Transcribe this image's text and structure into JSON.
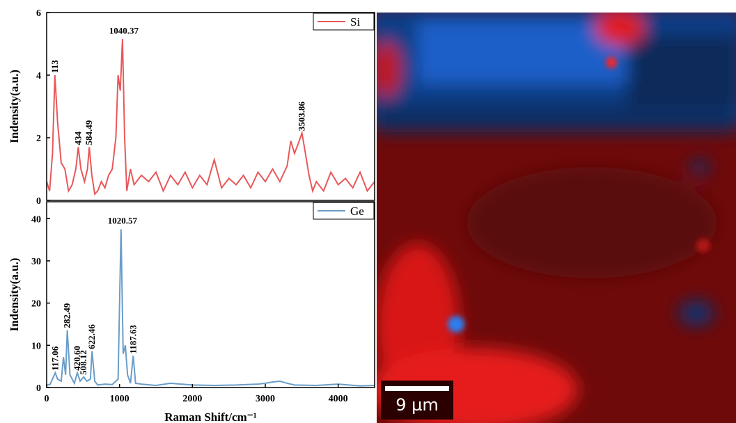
{
  "chart_data": [
    {
      "type": "line",
      "ylabel": "Indensity(a.u.)",
      "xlim": [
        0,
        4500
      ],
      "ylim": [
        0,
        6
      ],
      "yticks": [
        0,
        2,
        4,
        6
      ],
      "legend": "upper right",
      "series": [
        {
          "name": "Si",
          "color": "#e8585a",
          "x": [
            0,
            40,
            80,
            113,
            150,
            200,
            250,
            300,
            350,
            400,
            434,
            470,
            520,
            560,
            584.49,
            620,
            660,
            700,
            750,
            800,
            850,
            900,
            950,
            980,
            1010,
            1040.37,
            1070,
            1100,
            1150,
            1200,
            1300,
            1400,
            1500,
            1600,
            1700,
            1800,
            1900,
            2000,
            2100,
            2200,
            2300,
            2400,
            2500,
            2600,
            2700,
            2800,
            2900,
            3000,
            3100,
            3200,
            3300,
            3350,
            3400,
            3450,
            3503.86,
            3550,
            3600,
            3650,
            3700,
            3800,
            3900,
            4000,
            4100,
            4200,
            4300,
            4400,
            4500
          ],
          "values": [
            0.6,
            0.3,
            1.5,
            4.0,
            2.5,
            1.2,
            1.0,
            0.3,
            0.5,
            1.0,
            1.7,
            1.0,
            0.6,
            1.0,
            1.7,
            0.8,
            0.2,
            0.3,
            0.6,
            0.4,
            0.8,
            1.0,
            2.0,
            4.0,
            3.5,
            5.15,
            2.0,
            0.3,
            1.0,
            0.5,
            0.8,
            0.6,
            0.9,
            0.3,
            0.8,
            0.5,
            0.9,
            0.4,
            0.8,
            0.5,
            1.3,
            0.4,
            0.7,
            0.5,
            0.8,
            0.4,
            0.9,
            0.6,
            1.0,
            0.6,
            1.1,
            1.9,
            1.5,
            1.8,
            2.15,
            1.5,
            0.8,
            0.3,
            0.6,
            0.3,
            0.9,
            0.5,
            0.7,
            0.4,
            0.9,
            0.3,
            0.6
          ]
        }
      ],
      "annotations": [
        {
          "x": 113,
          "y": 4.0,
          "text": "113"
        },
        {
          "x": 434,
          "y": 1.7,
          "text": "434"
        },
        {
          "x": 584.49,
          "y": 1.7,
          "text": "584.49"
        },
        {
          "x": 1040.37,
          "y": 5.15,
          "text": "1040.37"
        },
        {
          "x": 3503.86,
          "y": 2.15,
          "text": "3503.86"
        }
      ]
    },
    {
      "type": "line",
      "ylabel": "Indensity(a.u.)",
      "xlabel": "Raman Shift/cm⁻¹",
      "xlim": [
        0,
        4500
      ],
      "ylim": [
        0,
        44
      ],
      "xticks": [
        0,
        1000,
        2000,
        3000,
        4000
      ],
      "yticks": [
        0,
        10,
        20,
        30,
        40
      ],
      "legend": "upper right",
      "series": [
        {
          "name": "Ge",
          "color": "#6a9dc8",
          "x": [
            0,
            50,
            117.06,
            150,
            200,
            230,
            260,
            282.49,
            320,
            380,
            420.6,
            460,
            508.12,
            550,
            600,
            622.46,
            660,
            700,
            800,
            900,
            980,
            1020.57,
            1050,
            1080,
            1110,
            1150,
            1187.63,
            1220,
            1300,
            1500,
            1700,
            2000,
            2300,
            2600,
            2900,
            3000,
            3100,
            3200,
            3300,
            3400,
            3700,
            4000,
            4300,
            4500
          ],
          "values": [
            0.5,
            0.8,
            3.5,
            2,
            1.5,
            7.2,
            3,
            13.6,
            3,
            1,
            3.5,
            1.5,
            2.5,
            1.5,
            2,
            8.6,
            1.5,
            0.6,
            0.8,
            0.7,
            2,
            37.5,
            8,
            10,
            3,
            1,
            7.5,
            1,
            0.8,
            0.5,
            1,
            0.6,
            0.5,
            0.6,
            0.8,
            1,
            1.3,
            1.5,
            1,
            0.6,
            0.5,
            0.8,
            0.4,
            0.5
          ]
        }
      ],
      "annotations": [
        {
          "x": 117.06,
          "y": 3.5,
          "text": "117.06"
        },
        {
          "x": 282.49,
          "y": 13.6,
          "text": "282.49"
        },
        {
          "x": 420.6,
          "y": 3.5,
          "text": "420.60"
        },
        {
          "x": 508.12,
          "y": 2.5,
          "text": "508.12"
        },
        {
          "x": 622.46,
          "y": 8.6,
          "text": "622.46"
        },
        {
          "x": 1020.57,
          "y": 37.5,
          "text": "1020.57"
        },
        {
          "x": 1187.63,
          "y": 7.5,
          "text": "1187.63"
        }
      ]
    }
  ],
  "map": {
    "scale_bar": "9 µm"
  }
}
